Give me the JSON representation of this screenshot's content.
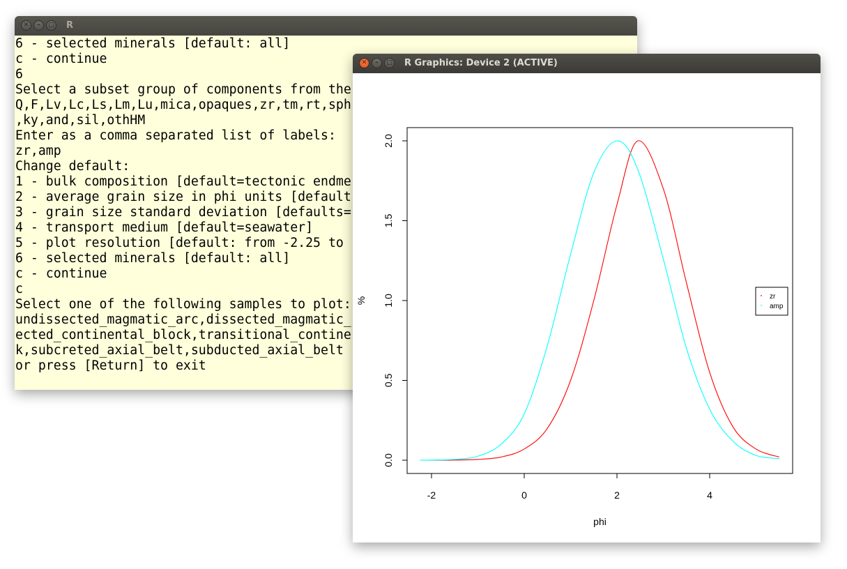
{
  "console": {
    "title": "R",
    "lines": [
      "6 - selected minerals [default: all]",
      "c - continue",
      "6",
      "Select a subset group of components from the",
      "Q,F,Lv,Lc,Ls,Lm,Lu,mica,opaques,zr,tm,rt,sph",
      ",ky,and,sil,othHM",
      "Enter as a comma separated list of labels:",
      "zr,amp",
      "Change default:",
      "1 - bulk composition [default=tectonic endme",
      "2 - average grain size in phi units [default",
      "3 - grain size standard deviation [defaults=",
      "4 - transport medium [default=seawater]",
      "5 - plot resolution [default: from -2.25 to",
      "6 - selected minerals [default: all]",
      "c - continue",
      "c",
      "Select one of the following samples to plot:",
      "undissected_magmatic_arc,dissected_magmatic_",
      "ected_continental_block,transitional_contine",
      "k,subcreted_axial_belt,subducted_axial_belt",
      "or press [Return] to exit"
    ]
  },
  "device": {
    "title": "R Graphics: Device 2 (ACTIVE)"
  },
  "chart_data": {
    "type": "line",
    "title": "",
    "xlabel": "phi",
    "ylabel": "%",
    "xlim": [
      -2.25,
      5.5
    ],
    "ylim": [
      0,
      2.0
    ],
    "x_ticks": [
      "-2",
      "0",
      "2",
      "4"
    ],
    "y_ticks": [
      "0.0",
      "0.5",
      "1.0",
      "1.5",
      "2.0"
    ],
    "x": [
      -2.25,
      -2.0,
      -1.5,
      -1.0,
      -0.5,
      0.0,
      0.5,
      1.0,
      1.5,
      2.0,
      2.45,
      3.0,
      3.5,
      4.0,
      4.5,
      5.0,
      5.5
    ],
    "series": [
      {
        "name": "zr",
        "color": "#ff0000",
        "values": [
          0.0,
          0.0,
          0.001,
          0.005,
          0.02,
          0.07,
          0.2,
          0.5,
          1.0,
          1.6,
          2.0,
          1.7,
          1.11,
          0.55,
          0.21,
          0.07,
          0.02
        ]
      },
      {
        "name": "amp",
        "color": "#00ffff",
        "values": [
          0.0,
          0.001,
          0.005,
          0.025,
          0.1,
          0.29,
          0.72,
          1.29,
          1.8,
          2.0,
          1.82,
          1.26,
          0.7,
          0.32,
          0.12,
          0.03,
          0.01
        ]
      }
    ],
    "legend": {
      "position": "right"
    },
    "grid": false
  }
}
